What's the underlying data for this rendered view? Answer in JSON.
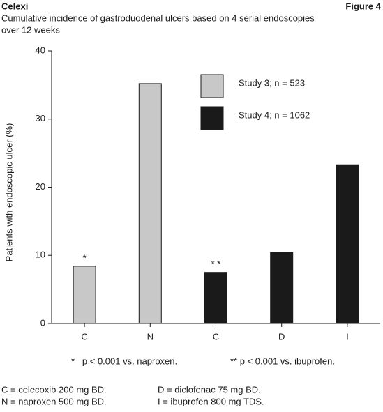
{
  "chart_data": {
    "type": "bar",
    "header": "Celexi",
    "figure_label": "Figure 4",
    "subtitle": [
      "Cumulative incidence of gastroduodenal ulcers based on 4 serial endoscopies",
      "over 12 weeks"
    ],
    "y_label": "Patients with endoscopic ulcer (%)",
    "categories": [
      "C",
      "N",
      "C",
      "D",
      "I"
    ],
    "series": [
      {
        "name": "Study 3; n = 523",
        "color": "#c8c8c8",
        "values": [
          8.4,
          35.2,
          null,
          null,
          null
        ]
      },
      {
        "name": "Study 4; n = 1062",
        "color": "#1a1a1a",
        "values": [
          null,
          null,
          7.5,
          10.4,
          23.3
        ]
      }
    ],
    "bar_annotations": [
      "*",
      null,
      "* *",
      null,
      null
    ],
    "ylim": [
      0,
      40
    ],
    "yticks": [
      0,
      10,
      20,
      30,
      40
    ],
    "legend": "upper-right",
    "footnotes": [
      "*   p < 0.001 vs. naproxen.",
      "** p < 0.001 vs. ibuprofen."
    ],
    "key": [
      "C = celecoxib 200 mg BD.",
      "N = naproxen 500 mg BD.",
      "D = diclofenac 75 mg BD.",
      "I = ibuprofen 800 mg TDS."
    ]
  }
}
